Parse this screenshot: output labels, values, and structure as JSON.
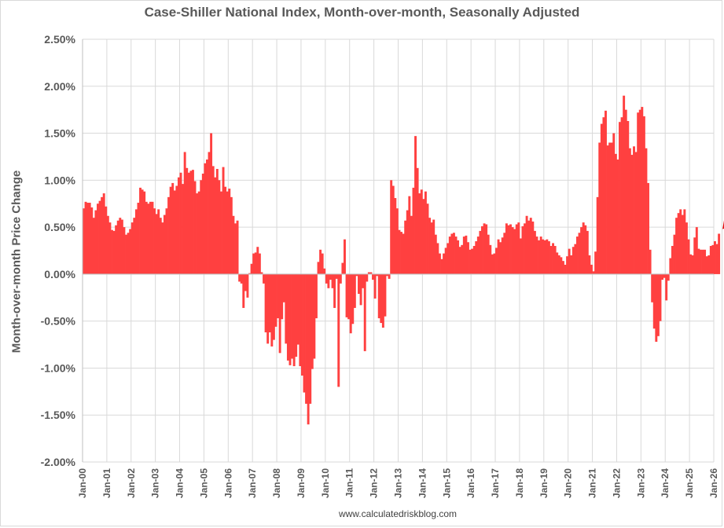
{
  "chart_data": {
    "type": "bar",
    "title": "Case-Shiller National Index, Month-over-month, Seasonally Adjusted",
    "ylabel": "Month-over-month Price Change",
    "source": "www.calculatedriskblog.com",
    "start": "2000-01",
    "ylim": [
      -0.02,
      0.025
    ],
    "yticks": [
      -0.02,
      -0.015,
      -0.01,
      -0.005,
      0,
      0.005,
      0.01,
      0.015,
      0.02,
      0.025
    ],
    "ytick_labels": [
      "-2.00%",
      "-1.50%",
      "-1.00%",
      "-0.50%",
      "0.00%",
      "0.50%",
      "1.00%",
      "1.50%",
      "2.00%",
      "2.50%"
    ],
    "xtick_labels": [
      "Jan-00",
      "Jan-01",
      "Jan-02",
      "Jan-03",
      "Jan-04",
      "Jan-05",
      "Jan-06",
      "Jan-07",
      "Jan-08",
      "Jan-09",
      "Jan-10",
      "Jan-11",
      "Jan-12",
      "Jan-13",
      "Jan-14",
      "Jan-15",
      "Jan-16",
      "Jan-17",
      "Jan-18",
      "Jan-19",
      "Jan-20",
      "Jan-21",
      "Jan-22",
      "Jan-23",
      "Jan-24",
      "Jan-25",
      "Jan-26"
    ],
    "grid": true,
    "bar_color": "#ff4040",
    "annotation": {
      "type": "arrow",
      "color": "#e00000"
    },
    "values": [
      0.007,
      0.0077,
      0.0076,
      0.0076,
      0.0071,
      0.006,
      0.0068,
      0.0075,
      0.0078,
      0.0082,
      0.0086,
      0.0072,
      0.0062,
      0.0055,
      0.0047,
      0.0046,
      0.0052,
      0.0057,
      0.006,
      0.0058,
      0.005,
      0.0042,
      0.0044,
      0.0048,
      0.0055,
      0.006,
      0.0069,
      0.0076,
      0.0092,
      0.009,
      0.0088,
      0.0077,
      0.0075,
      0.0077,
      0.0077,
      0.007,
      0.0064,
      0.0069,
      0.006,
      0.0055,
      0.0063,
      0.007,
      0.0082,
      0.0093,
      0.0097,
      0.0089,
      0.0094,
      0.0103,
      0.0108,
      0.0096,
      0.013,
      0.0113,
      0.0108,
      0.011,
      0.0111,
      0.0099,
      0.0086,
      0.0088,
      0.01,
      0.0107,
      0.0118,
      0.0122,
      0.013,
      0.015,
      0.0115,
      0.0103,
      0.0112,
      0.01,
      0.0088,
      0.0114,
      0.0093,
      0.0088,
      0.0091,
      0.0082,
      0.0062,
      0.0054,
      0.0057,
      -0.0008,
      -0.001,
      -0.0036,
      -0.0018,
      -0.0025,
      0.0001,
      0.0011,
      0.0022,
      0.0023,
      0.0029,
      0.0022,
      0.0002,
      -0.001,
      -0.0062,
      -0.0074,
      -0.0062,
      -0.0077,
      -0.007,
      -0.0056,
      -0.0047,
      -0.0084,
      -0.0048,
      -0.003,
      -0.0074,
      -0.0092,
      -0.0097,
      -0.009,
      -0.0098,
      -0.0088,
      -0.0075,
      -0.0098,
      -0.0108,
      -0.0126,
      -0.0138,
      -0.016,
      -0.0138,
      -0.0101,
      -0.009,
      -0.0047,
      0.0013,
      0.0026,
      0.0022,
      0.0006,
      -0.001,
      -0.0015,
      -0.0006,
      -0.0015,
      -0.0036,
      -0.0005,
      -0.012,
      -0.001,
      0.0012,
      0.0037,
      -0.0046,
      -0.0048,
      -0.0063,
      -0.0053,
      -0.0036,
      -0.0002,
      -0.0021,
      -0.0033,
      -0.0015,
      -0.0082,
      -0.0008,
      0.0002,
      0.0002,
      -0.0006,
      -0.0026,
      -0.0002,
      -0.0047,
      -0.0052,
      -0.0057,
      -0.0045,
      -0.0002,
      -0.0005,
      0.01,
      0.0094,
      0.0081,
      0.007,
      0.0047,
      0.0045,
      0.0043,
      0.0057,
      0.0068,
      0.0083,
      0.0062,
      0.0092,
      0.0147,
      0.0113,
      0.0086,
      0.009,
      0.008,
      0.0088,
      0.0075,
      0.006,
      0.0055,
      0.0058,
      0.0042,
      0.0033,
      0.0022,
      0.0016,
      0.0022,
      0.0028,
      0.0033,
      0.004,
      0.0043,
      0.0044,
      0.004,
      0.0036,
      0.0029,
      0.0031,
      0.004,
      0.0041,
      0.0034,
      0.0026,
      0.0027,
      0.003,
      0.0035,
      0.004,
      0.0046,
      0.0051,
      0.0054,
      0.0053,
      0.0042,
      0.0031,
      0.0021,
      0.0022,
      0.0028,
      0.0037,
      0.0034,
      0.0039,
      0.0044,
      0.0054,
      0.0052,
      0.0053,
      0.005,
      0.0048,
      0.0053,
      0.0055,
      0.0038,
      0.0051,
      0.0054,
      0.0062,
      0.0057,
      0.006,
      0.0056,
      0.0046,
      0.004,
      0.0036,
      0.004,
      0.0037,
      0.0036,
      0.0037,
      0.0035,
      0.003,
      0.0033,
      0.003,
      0.0023,
      0.002,
      0.0018,
      0.0014,
      0.001,
      0.0019,
      0.0027,
      0.002,
      0.0029,
      0.0032,
      0.004,
      0.0044,
      0.005,
      0.0055,
      0.0052,
      0.0046,
      0.002,
      0.001,
      0.0003,
      0.0024,
      0.0082,
      0.014,
      0.016,
      0.0167,
      0.0174,
      0.0137,
      0.014,
      0.014,
      0.015,
      0.0128,
      0.0122,
      0.0162,
      0.0167,
      0.019,
      0.0175,
      0.0163,
      0.0134,
      0.0127,
      0.0136,
      0.013,
      0.0172,
      0.0175,
      0.0178,
      0.0168,
      0.0134,
      0.0097,
      0.0026,
      -0.003,
      -0.0058,
      -0.0072,
      -0.0066,
      -0.005,
      -0.0006,
      -0.0004,
      -0.0028,
      -0.0007,
      0.0017,
      0.003,
      0.0042,
      0.006,
      0.0065,
      0.0069,
      0.0063,
      0.0069,
      0.0055,
      0.0037,
      0.0021,
      0.002,
      0.0039,
      0.005,
      0.0027,
      0.0026,
      0.0026,
      0.0026,
      0.0019,
      0.002,
      0.003,
      0.0031,
      0.0035,
      0.0032,
      0.0043
    ]
  }
}
